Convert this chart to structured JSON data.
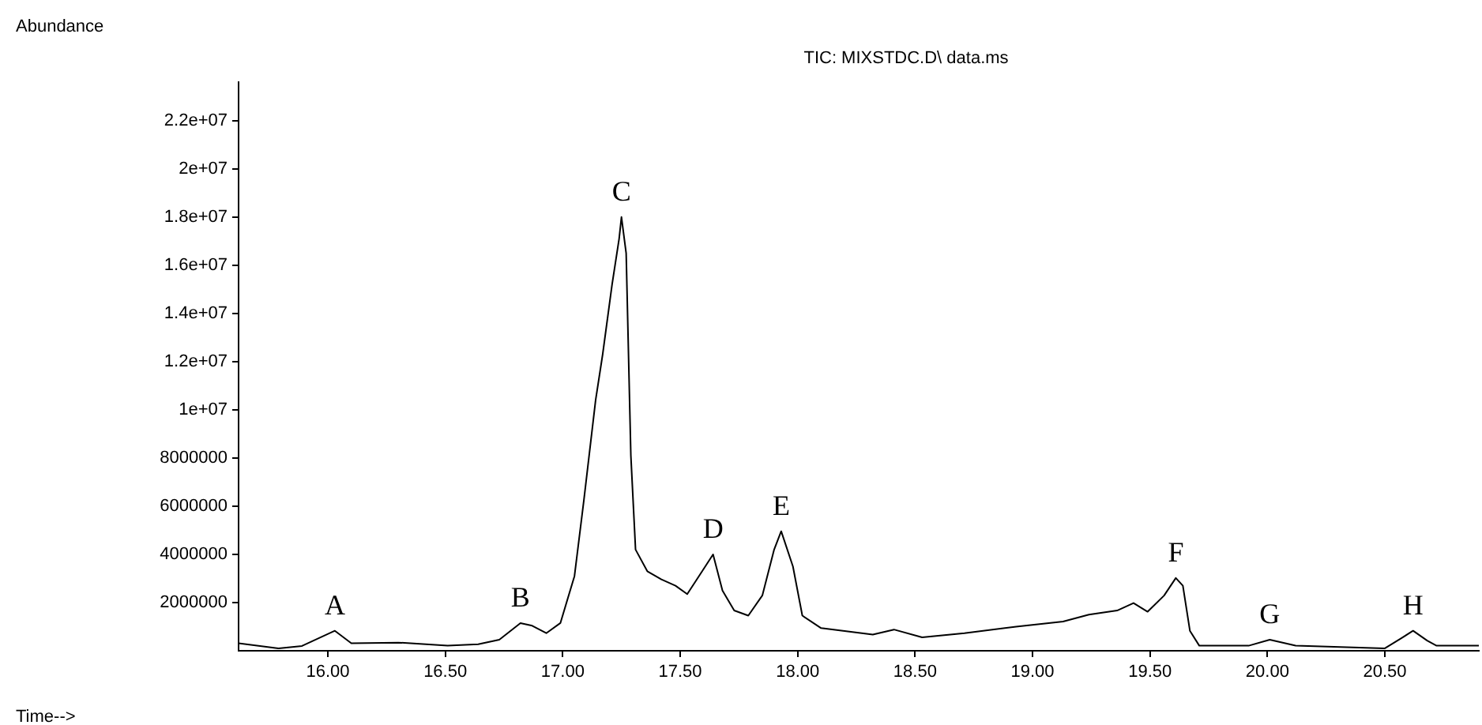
{
  "chart_data": {
    "type": "line",
    "title": "TIC: MIXSTDC.D\\ data.ms",
    "ylabel": "Abundance",
    "xlim": [
      15.62,
      20.9
    ],
    "ylim": [
      0,
      23600000
    ],
    "xticks": [
      {
        "value": 16,
        "label": "16.00"
      },
      {
        "value": 16.5,
        "label": "16.50"
      },
      {
        "value": 17,
        "label": "17.00"
      },
      {
        "value": 17.5,
        "label": "17.50"
      },
      {
        "value": 18,
        "label": "18.00"
      },
      {
        "value": 18.5,
        "label": "18.50"
      },
      {
        "value": 19,
        "label": "19.00"
      },
      {
        "value": 19.5,
        "label": "19.50"
      },
      {
        "value": 20,
        "label": "20.00"
      },
      {
        "value": 20.5,
        "label": "20.50"
      }
    ],
    "yticks": [
      2000000,
      4000000,
      6000000,
      8000000,
      {
        "value": 10000000,
        "label": "1e+07"
      },
      {
        "value": 12000000,
        "label": "1.2e+07"
      },
      {
        "value": 14000000,
        "label": "1.4e+07"
      },
      {
        "value": 16000000,
        "label": "1.6e+07"
      },
      {
        "value": 18000000,
        "label": "1.8e+07"
      },
      {
        "value": 20000000,
        "label": "2e+07"
      },
      {
        "value": 22000000,
        "label": "2.2e+07"
      }
    ],
    "grid": false,
    "legend": false,
    "marker": "none",
    "line_style": "solid",
    "series": [
      {
        "color": "#000000",
        "x": [
          15.62,
          15.79,
          15.89,
          16.03,
          16.1,
          16.3,
          16.51,
          16.64,
          16.73,
          16.82,
          16.87,
          16.93,
          16.99,
          17.05,
          17.09,
          17.14,
          17.17,
          17.21,
          17.24,
          17.25,
          17.27,
          17.29,
          17.31,
          17.36,
          17.42,
          17.48,
          17.53,
          17.58,
          17.64,
          17.68,
          17.73,
          17.79,
          17.85,
          17.9,
          17.93,
          17.98,
          18.02,
          18.1,
          18.32,
          18.41,
          18.53,
          18.71,
          18.93,
          19.13,
          19.24,
          19.36,
          19.43,
          19.49,
          19.56,
          19.61,
          19.64,
          19.67,
          19.71,
          19.92,
          20.01,
          20.12,
          20.5,
          20.57,
          20.62,
          20.68,
          20.72,
          20.9
        ],
        "values": [
          310000,
          100000,
          200000,
          830000,
          310000,
          340000,
          210000,
          270000,
          460000,
          1150000,
          1040000,
          730000,
          1150000,
          3100000,
          6250000,
          10400000,
          12300000,
          15200000,
          17100000,
          18000000,
          16500000,
          8100000,
          4200000,
          3300000,
          2960000,
          2700000,
          2350000,
          3100000,
          4000000,
          2500000,
          1670000,
          1460000,
          2300000,
          4200000,
          4960000,
          3500000,
          1460000,
          940000,
          670000,
          880000,
          560000,
          730000,
          1000000,
          1210000,
          1500000,
          1670000,
          1980000,
          1620000,
          2290000,
          3020000,
          2700000,
          830000,
          210000,
          210000,
          460000,
          210000,
          100000,
          520000,
          830000,
          420000,
          210000,
          210000
        ]
      }
    ],
    "annotations": [
      "Time-->",
      {
        "text": "A",
        "x": 16.03,
        "y": 830000
      },
      {
        "text": "B",
        "x": 16.82,
        "y": 1150000
      },
      {
        "text": "C",
        "x": 17.25,
        "y": 18000000
      },
      {
        "text": "D",
        "x": 17.64,
        "y": 4000000
      },
      {
        "text": "E",
        "x": 17.93,
        "y": 4960000
      },
      {
        "text": "F",
        "x": 19.61,
        "y": 3020000
      },
      {
        "text": "G",
        "x": 20.01,
        "y": 460000
      },
      {
        "text": "H",
        "x": 20.62,
        "y": 830000
      }
    ]
  }
}
